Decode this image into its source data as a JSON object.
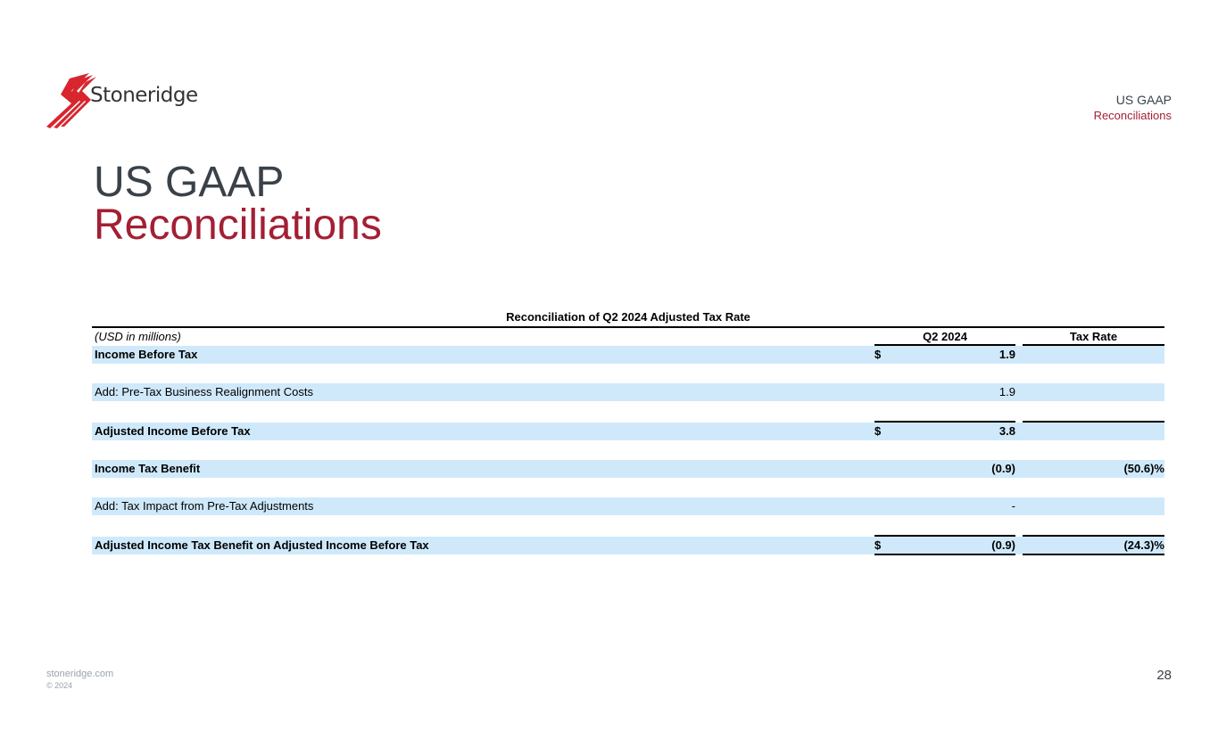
{
  "brand": {
    "logo_text": "Stoneridge"
  },
  "header": {
    "section": "US GAAP",
    "subsection": "Reconciliations"
  },
  "title": {
    "line1": "US GAAP",
    "line2": "Reconciliations"
  },
  "table": {
    "title": "Reconciliation of Q2 2024 Adjusted Tax Rate",
    "unit_label": "(USD in millions)",
    "col_q2": "Q2 2024",
    "col_rate": "Tax Rate",
    "rows": [
      {
        "label": "Income Before Tax",
        "dollar": "$",
        "value": "1.9",
        "rate": ""
      },
      {
        "label": "Add: Pre-Tax Business Realignment Costs",
        "dollar": "",
        "value": "1.9",
        "rate": ""
      },
      {
        "label": "Adjusted Income Before Tax",
        "dollar": "$",
        "value": "3.8",
        "rate": ""
      },
      {
        "label": "Income Tax Benefit",
        "dollar": "",
        "value": "(0.9)",
        "rate": "(50.6)%"
      },
      {
        "label": "Add: Tax Impact from Pre-Tax Adjustments",
        "dollar": "",
        "value": "-",
        "rate": ""
      },
      {
        "label": "Adjusted Income Tax Benefit on Adjusted Income Before Tax",
        "dollar": "$",
        "value": "(0.9)",
        "rate": "(24.3)%"
      }
    ]
  },
  "footer": {
    "website": "stoneridge.com",
    "copyright": "© 2024",
    "page": "28"
  }
}
